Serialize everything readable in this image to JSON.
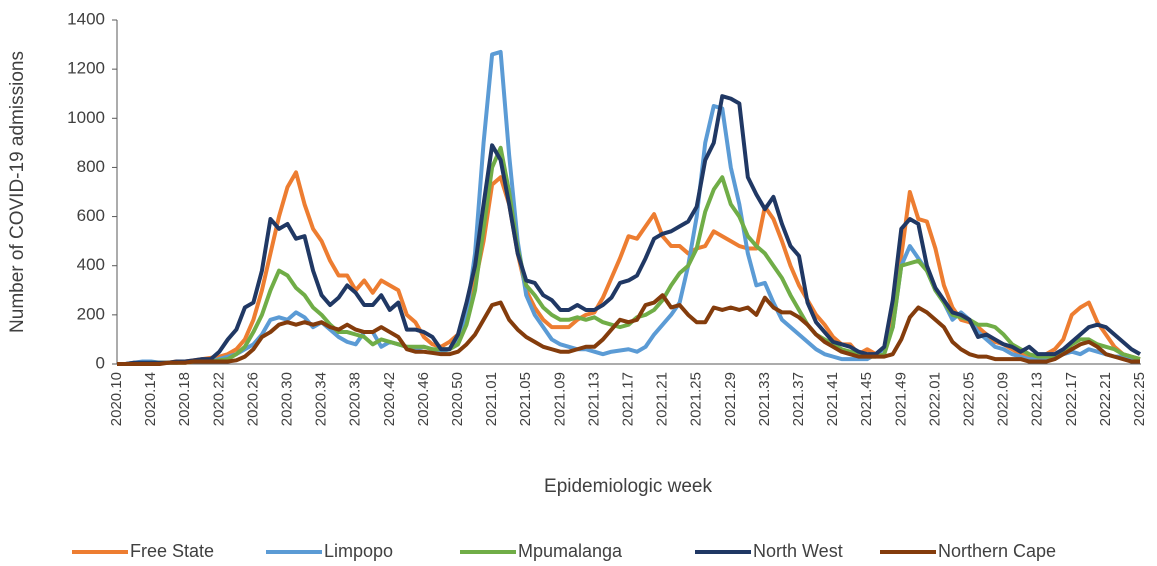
{
  "chart_data": {
    "type": "line",
    "x_label": "Epidemiologic week",
    "y_label": "Number of COVID-19 admissions",
    "categories": [
      "2020.10",
      null,
      null,
      null,
      "2020.14",
      null,
      null,
      null,
      "2020.18",
      null,
      null,
      null,
      "2020.22",
      null,
      null,
      null,
      "2020.26",
      null,
      null,
      null,
      "2020.30",
      null,
      null,
      null,
      "2020.34",
      null,
      null,
      null,
      "2020.38",
      null,
      null,
      null,
      "2020.42",
      null,
      null,
      null,
      "2020.46",
      null,
      null,
      null,
      "2020.50",
      null,
      null,
      null,
      "2021.01",
      null,
      null,
      null,
      "2021.05",
      null,
      null,
      null,
      "2021.09",
      null,
      null,
      null,
      "2021.13",
      null,
      null,
      null,
      "2021.17",
      null,
      null,
      null,
      "2021.21",
      null,
      null,
      null,
      "2021.25",
      null,
      null,
      null,
      "2021.29",
      null,
      null,
      null,
      "2021.33",
      null,
      null,
      null,
      "2021.37",
      null,
      null,
      null,
      "2021.41",
      null,
      null,
      null,
      "2021.45",
      null,
      null,
      null,
      "2021.49",
      null,
      null,
      null,
      "2022.01",
      null,
      null,
      null,
      "2022.05",
      null,
      null,
      null,
      "2022.09",
      null,
      null,
      null,
      "2022.13",
      null,
      null,
      null,
      "2022.17",
      null,
      null,
      null,
      "2022.21",
      null,
      null,
      null,
      "2022.25"
    ],
    "series": [
      {
        "name": "Free State",
        "color": "#ed7d31",
        "values": [
          0,
          0,
          5,
          5,
          5,
          5,
          5,
          10,
          10,
          15,
          20,
          25,
          30,
          40,
          60,
          100,
          180,
          300,
          450,
          600,
          720,
          780,
          650,
          550,
          500,
          420,
          360,
          360,
          300,
          340,
          290,
          340,
          320,
          300,
          200,
          170,
          110,
          80,
          70,
          90,
          120,
          200,
          330,
          500,
          730,
          760,
          650,
          450,
          300,
          230,
          180,
          150,
          150,
          150,
          180,
          200,
          210,
          270,
          350,
          430,
          520,
          510,
          560,
          610,
          520,
          480,
          480,
          450,
          470,
          480,
          540,
          520,
          500,
          480,
          470,
          470,
          640,
          590,
          500,
          400,
          320,
          260,
          200,
          160,
          110,
          80,
          80,
          40,
          60,
          40,
          60,
          200,
          440,
          700,
          590,
          580,
          470,
          320,
          230,
          180,
          170,
          150,
          120,
          90,
          80,
          60,
          40,
          30,
          30,
          40,
          60,
          100,
          200,
          230,
          250,
          170,
          120,
          70,
          40,
          30,
          20
        ]
      },
      {
        "name": "Limpopo",
        "color": "#5b9bd5",
        "values": [
          0,
          0,
          5,
          10,
          10,
          5,
          5,
          5,
          10,
          10,
          10,
          10,
          20,
          30,
          40,
          60,
          80,
          120,
          180,
          190,
          180,
          210,
          190,
          150,
          170,
          140,
          110,
          90,
          80,
          130,
          130,
          70,
          90,
          80,
          70,
          60,
          70,
          60,
          50,
          60,
          90,
          200,
          450,
          900,
          1260,
          1270,
          850,
          500,
          280,
          200,
          150,
          100,
          80,
          70,
          60,
          60,
          50,
          40,
          50,
          55,
          60,
          50,
          70,
          120,
          160,
          200,
          250,
          400,
          600,
          900,
          1050,
          1040,
          800,
          650,
          450,
          320,
          330,
          250,
          180,
          150,
          120,
          90,
          60,
          40,
          30,
          20,
          20,
          20,
          20,
          40,
          60,
          150,
          400,
          480,
          430,
          380,
          300,
          250,
          180,
          210,
          180,
          130,
          100,
          70,
          60,
          40,
          30,
          20,
          20,
          20,
          30,
          40,
          50,
          40,
          60,
          50,
          40,
          30,
          30,
          20,
          20
        ]
      },
      {
        "name": "Mpumalanga",
        "color": "#70ad47",
        "values": [
          0,
          0,
          0,
          0,
          5,
          5,
          5,
          5,
          5,
          10,
          10,
          10,
          15,
          20,
          40,
          70,
          130,
          200,
          300,
          380,
          360,
          310,
          280,
          230,
          200,
          160,
          130,
          130,
          120,
          110,
          80,
          100,
          90,
          80,
          70,
          70,
          70,
          60,
          60,
          60,
          80,
          160,
          300,
          550,
          800,
          880,
          700,
          470,
          320,
          280,
          230,
          200,
          180,
          180,
          190,
          180,
          190,
          170,
          160,
          150,
          160,
          190,
          200,
          220,
          260,
          320,
          370,
          400,
          470,
          620,
          710,
          760,
          650,
          600,
          520,
          480,
          450,
          400,
          350,
          280,
          220,
          160,
          120,
          100,
          80,
          60,
          50,
          40,
          30,
          30,
          40,
          150,
          400,
          410,
          420,
          380,
          300,
          250,
          200,
          190,
          180,
          160,
          160,
          150,
          120,
          80,
          60,
          40,
          30,
          30,
          30,
          50,
          80,
          100,
          100,
          80,
          70,
          60,
          40,
          30,
          20
        ]
      },
      {
        "name": "North West",
        "color": "#203864",
        "values": [
          0,
          0,
          5,
          5,
          5,
          5,
          5,
          10,
          10,
          15,
          20,
          20,
          50,
          100,
          140,
          230,
          250,
          380,
          590,
          550,
          570,
          510,
          520,
          380,
          280,
          240,
          270,
          320,
          290,
          240,
          240,
          280,
          220,
          250,
          140,
          140,
          130,
          110,
          60,
          60,
          120,
          250,
          400,
          650,
          890,
          830,
          650,
          450,
          340,
          330,
          280,
          260,
          220,
          220,
          240,
          220,
          220,
          240,
          270,
          330,
          340,
          360,
          430,
          510,
          530,
          540,
          560,
          580,
          640,
          830,
          900,
          1090,
          1080,
          1060,
          760,
          690,
          630,
          680,
          570,
          480,
          440,
          250,
          170,
          130,
          90,
          80,
          70,
          50,
          40,
          40,
          70,
          260,
          550,
          590,
          570,
          400,
          310,
          260,
          210,
          200,
          180,
          110,
          120,
          100,
          80,
          70,
          50,
          70,
          40,
          40,
          40,
          60,
          90,
          120,
          150,
          160,
          150,
          120,
          90,
          60,
          40
        ]
      },
      {
        "name": "Northern Cape",
        "color": "#843c0c",
        "values": [
          0,
          0,
          0,
          0,
          0,
          0,
          5,
          5,
          5,
          10,
          10,
          10,
          10,
          10,
          15,
          30,
          60,
          110,
          130,
          160,
          170,
          160,
          170,
          160,
          170,
          150,
          140,
          160,
          140,
          130,
          130,
          150,
          130,
          110,
          60,
          50,
          50,
          45,
          40,
          40,
          50,
          80,
          120,
          180,
          240,
          250,
          180,
          140,
          110,
          90,
          70,
          60,
          50,
          50,
          60,
          70,
          70,
          100,
          140,
          180,
          170,
          180,
          240,
          250,
          280,
          230,
          240,
          200,
          170,
          170,
          230,
          220,
          230,
          220,
          230,
          200,
          270,
          230,
          210,
          210,
          190,
          160,
          120,
          90,
          70,
          50,
          40,
          30,
          30,
          30,
          30,
          40,
          100,
          190,
          230,
          210,
          180,
          150,
          90,
          60,
          40,
          30,
          30,
          20,
          20,
          20,
          20,
          10,
          10,
          10,
          20,
          40,
          60,
          80,
          90,
          70,
          40,
          30,
          20,
          10,
          10
        ]
      }
    ],
    "ylim": [
      0,
      1400
    ],
    "yticks": [
      0,
      200,
      400,
      600,
      800,
      1000,
      1200,
      1400
    ],
    "grid": false,
    "legend": "bottom"
  }
}
